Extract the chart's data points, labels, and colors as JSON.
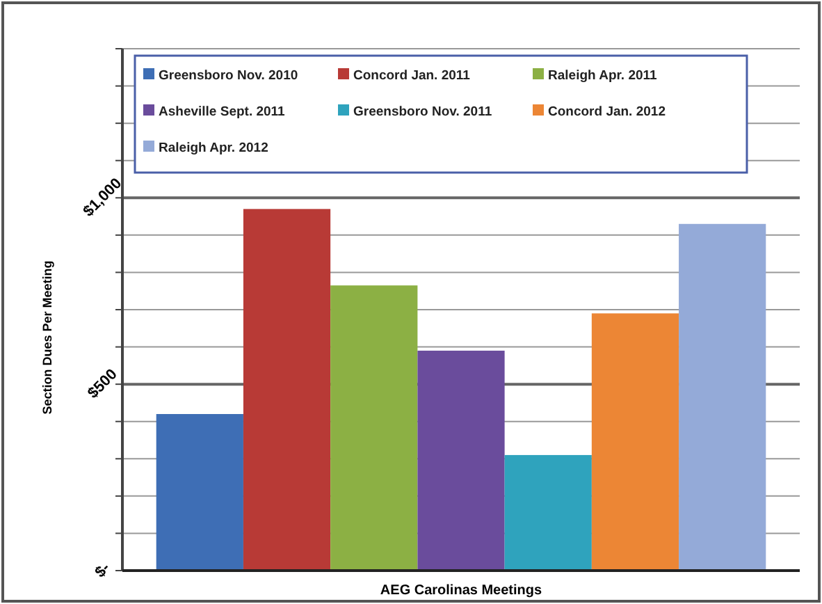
{
  "chart_data": {
    "type": "bar",
    "xlabel": "AEG Carolinas Meetings",
    "ylabel": "Section Dues Per Meeting",
    "categories": [
      null
    ],
    "series": [
      {
        "name": "Greensboro Nov. 2010",
        "color": "#3e6eb5",
        "values": [
          420
        ]
      },
      {
        "name": "Concord Jan. 2011",
        "color": "#b83a36",
        "values": [
          970
        ]
      },
      {
        "name": "Raleigh Apr. 2011",
        "color": "#8cb044",
        "values": [
          765
        ]
      },
      {
        "name": "Asheville Sept. 2011",
        "color": "#6a4c9c",
        "values": [
          590
        ]
      },
      {
        "name": "Greensboro Nov. 2011",
        "color": "#2fa3bd",
        "values": [
          310
        ]
      },
      {
        "name": "Concord Jan. 2012",
        "color": "#ec8635",
        "values": [
          690
        ]
      },
      {
        "name": "Raleigh Apr. 2012",
        "color": "#94aad8",
        "values": [
          930
        ]
      }
    ],
    "ylim": [
      0,
      1400
    ],
    "yticks": [
      {
        "value": 0,
        "label": "$-"
      },
      {
        "value": 100,
        "label": null
      },
      {
        "value": 200,
        "label": null
      },
      {
        "value": 300,
        "label": null
      },
      {
        "value": 400,
        "label": null
      },
      {
        "value": 500,
        "label": "$500"
      },
      {
        "value": 600,
        "label": null
      },
      {
        "value": 700,
        "label": null
      },
      {
        "value": 800,
        "label": null
      },
      {
        "value": 900,
        "label": null
      },
      {
        "value": 1000,
        "label": "$1,000"
      },
      {
        "value": 1100,
        "label": null
      },
      {
        "value": 1200,
        "label": null
      },
      {
        "value": 1300,
        "label": null
      },
      {
        "value": 1400,
        "label": null
      }
    ],
    "grid": "y",
    "legend": "top"
  }
}
